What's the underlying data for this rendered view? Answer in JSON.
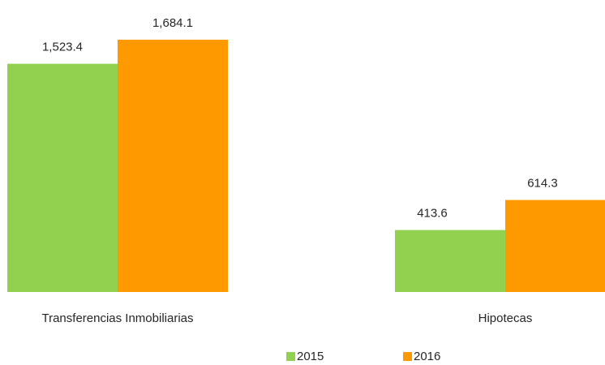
{
  "chart_data": {
    "type": "bar",
    "categories": [
      "Transferencias Inmobiliarias",
      "Hipotecas"
    ],
    "series": [
      {
        "name": "2015",
        "color": "#92d050",
        "values": [
          1523.4,
          413.6
        ],
        "value_labels": [
          "1,523.4",
          "413.6"
        ]
      },
      {
        "name": "2016",
        "color": "#ff9900",
        "values": [
          1684.1,
          614.3
        ],
        "value_labels": [
          "1,684.1",
          "614.3"
        ]
      }
    ],
    "legend": "bottom"
  }
}
